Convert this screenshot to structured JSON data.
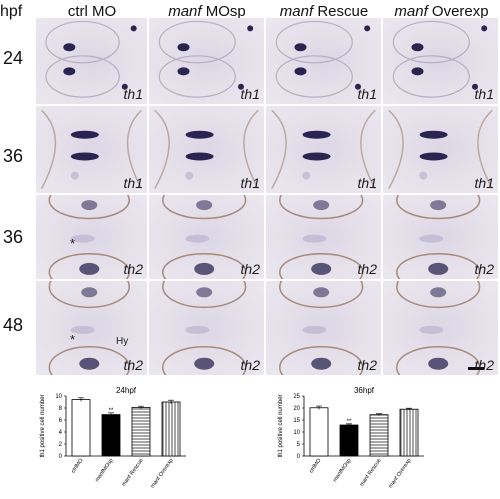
{
  "header": {
    "row_unit": "hpf",
    "columns": [
      {
        "italic": "",
        "plain": "ctrl MO"
      },
      {
        "italic": "manf",
        "plain": " MOsp"
      },
      {
        "italic": "manf",
        "plain": " Rescue"
      },
      {
        "italic": "manf",
        "plain": " Overexp"
      }
    ]
  },
  "rows": [
    {
      "time": "24",
      "gene": "th1"
    },
    {
      "time": "36",
      "gene": "th1"
    },
    {
      "time": "36",
      "gene": "th2"
    },
    {
      "time": "48",
      "gene": "th2"
    }
  ],
  "annotations": {
    "asterisk": "*",
    "hy": "Hy"
  },
  "colors": {
    "stain": "#2a2550",
    "background": "#e8e4ed",
    "border": "#a88a7a"
  },
  "chart_data": [
    {
      "type": "bar",
      "title": "24hpf",
      "ylabel": "th1 positive cell number",
      "categories": [
        "ctrlMO",
        "manfMOsp",
        "manf Rescue",
        "manf Overexp"
      ],
      "values": [
        9.4,
        6.9,
        8.1,
        9.0
      ],
      "errors": [
        0.3,
        0.3,
        0.2,
        0.3
      ],
      "ylim": [
        0,
        10
      ],
      "yticks": [
        "0",
        "2",
        "4",
        "6",
        "8",
        "10"
      ],
      "significance": [
        "",
        "**",
        "",
        ""
      ],
      "fills": [
        "white",
        "black",
        "hstripes",
        "vstripes"
      ]
    },
    {
      "type": "bar",
      "title": "36hpf",
      "ylabel": "th1 positive cell number",
      "categories": [
        "ctrlMO",
        "manfMOsp",
        "manf Rescue",
        "manf Overexp"
      ],
      "values": [
        20.1,
        12.9,
        17.2,
        19.5
      ],
      "errors": [
        0.7,
        0.5,
        0.4,
        0.4
      ],
      "ylim": [
        0,
        25
      ],
      "yticks": [
        "0",
        "5",
        "10",
        "15",
        "20",
        "25"
      ],
      "significance": [
        "",
        "**",
        "",
        ""
      ],
      "fills": [
        "white",
        "black",
        "hstripes",
        "vstripes"
      ]
    }
  ]
}
